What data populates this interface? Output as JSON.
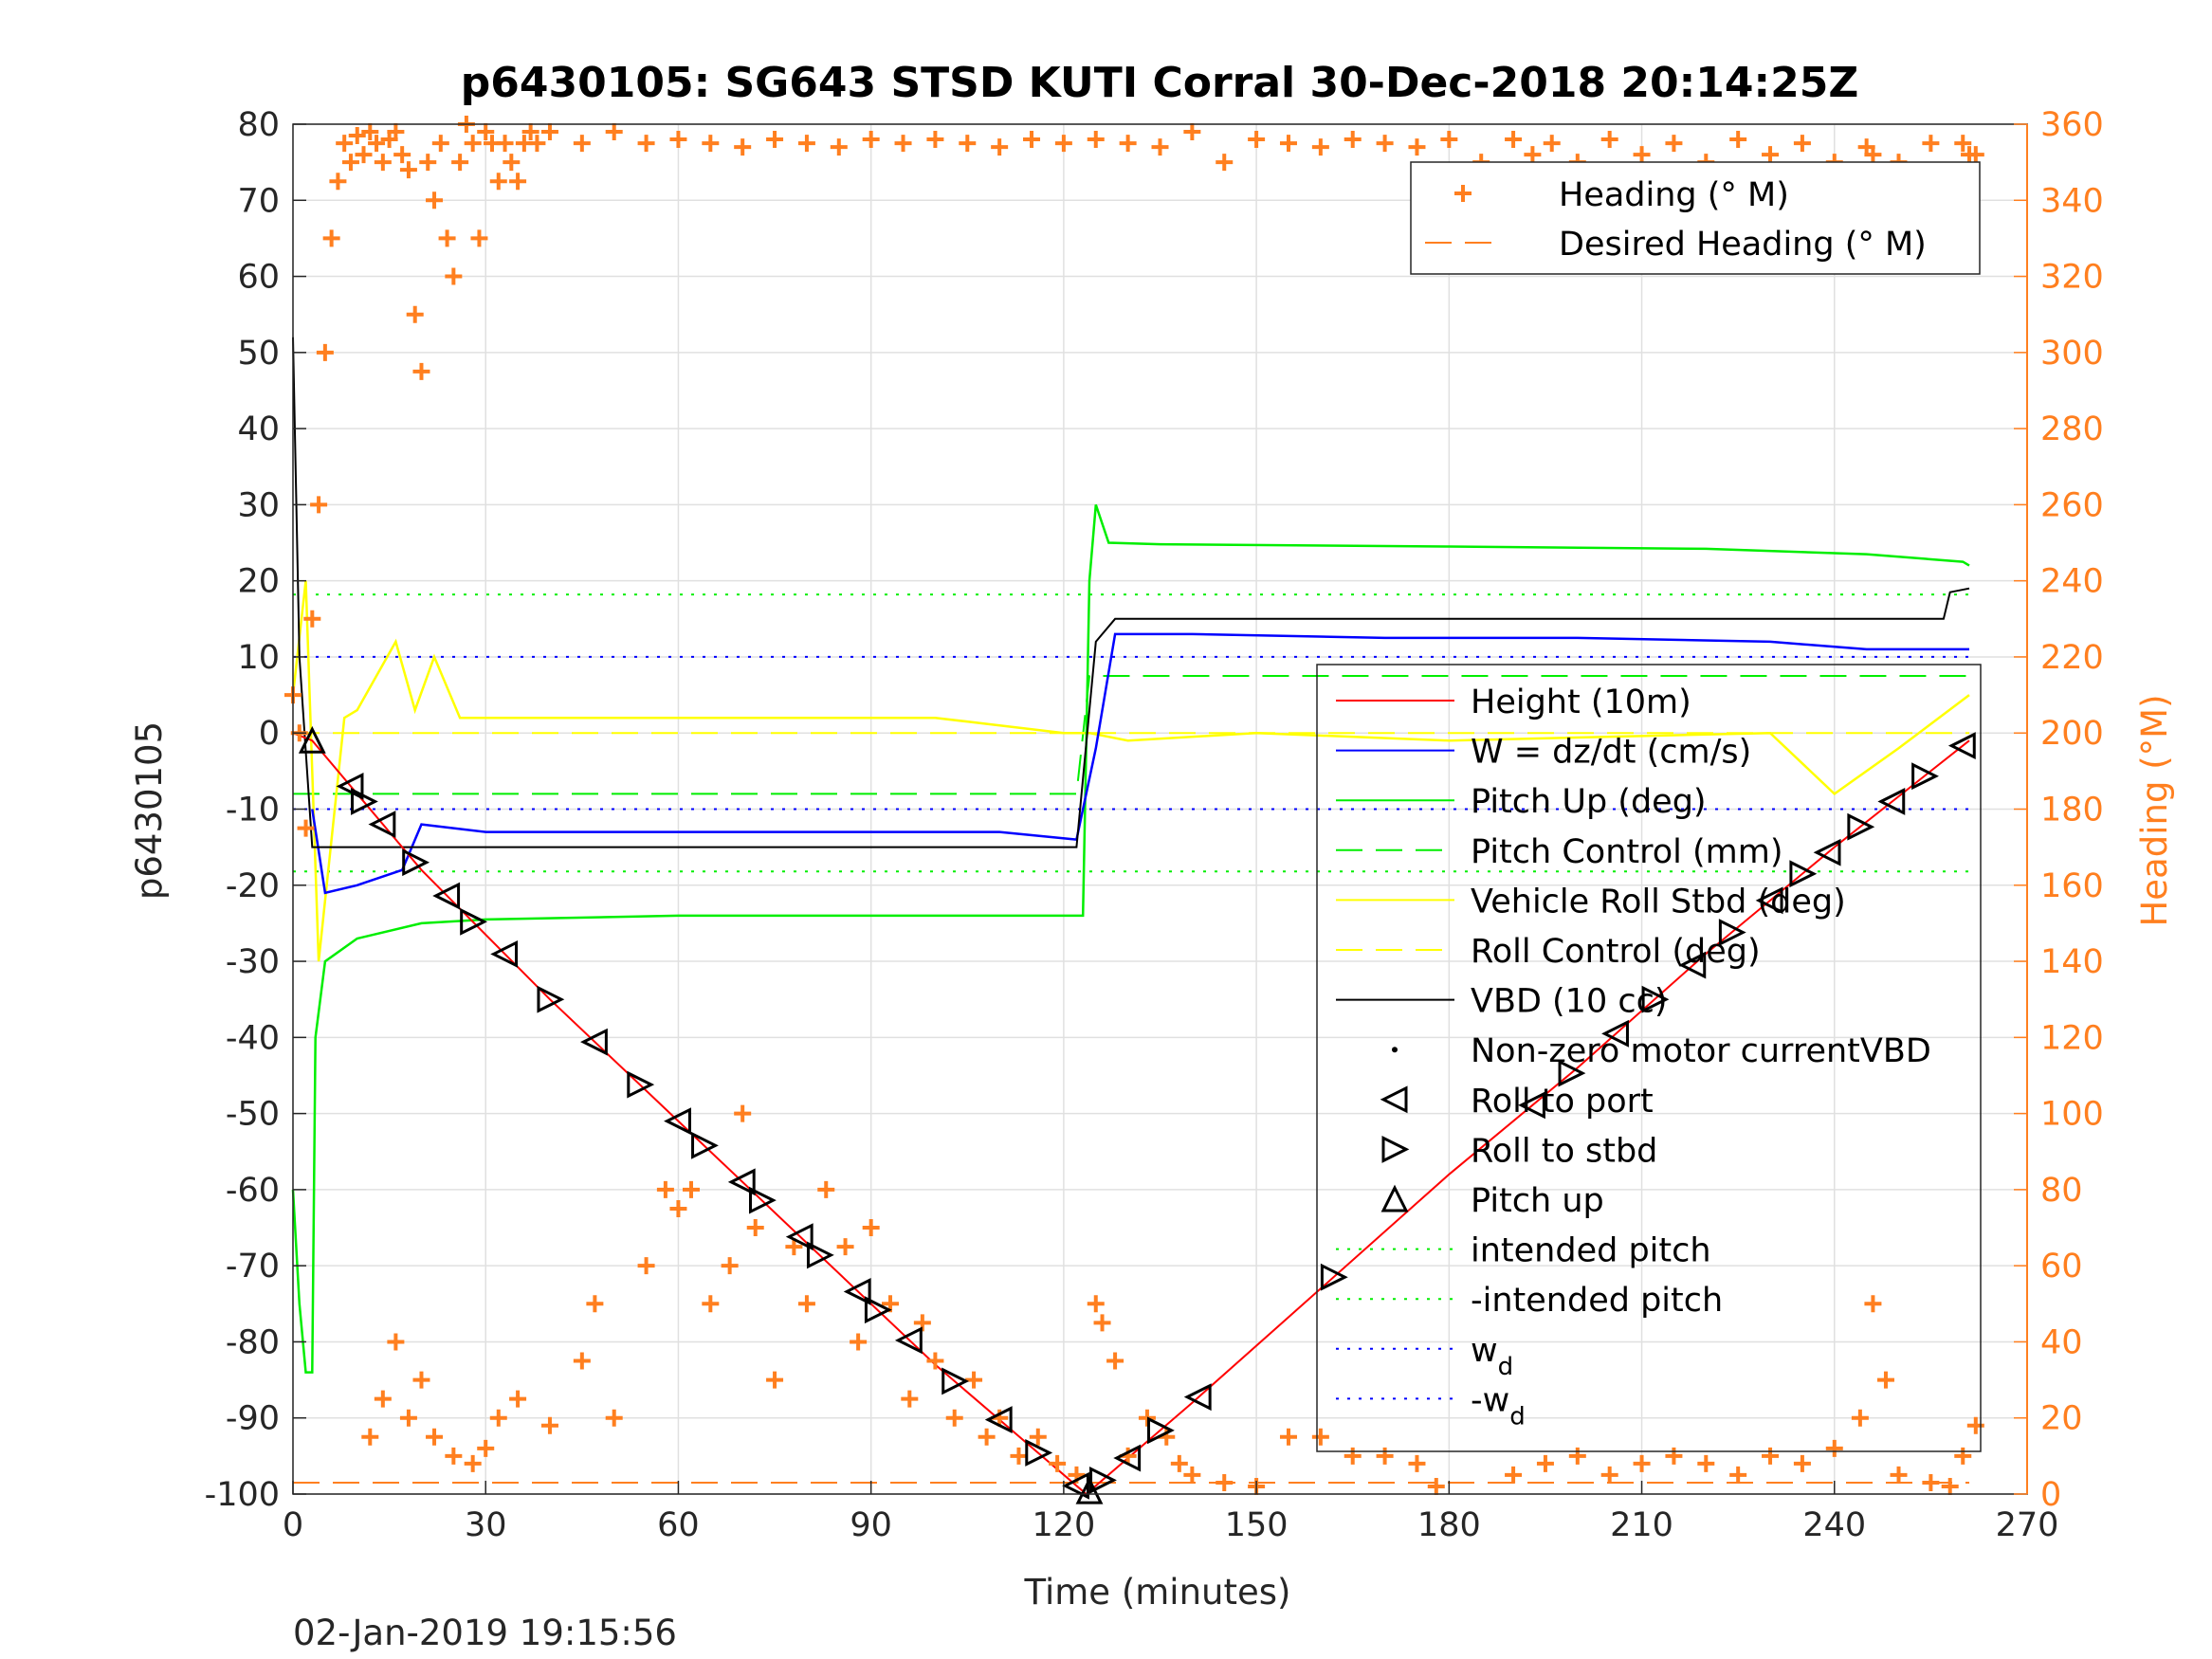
{
  "chart_data": {
    "type": "line",
    "title": "p6430105: SG643 STSD KUTI Corral 30-Dec-2018 20:14:25Z",
    "xlabel": "Time (minutes)",
    "ylabel": "p6430105",
    "y2label": "Heading (°M)",
    "footer_timestamp": "02-Jan-2019 19:15:56",
    "xlim": [
      0,
      270
    ],
    "ylim": [
      -100,
      80
    ],
    "y2lim": [
      0,
      360
    ],
    "xticks": [
      0,
      30,
      60,
      90,
      120,
      150,
      180,
      210,
      240,
      270
    ],
    "yticks": [
      -100,
      -90,
      -80,
      -70,
      -60,
      -50,
      -40,
      -30,
      -20,
      -10,
      0,
      10,
      20,
      30,
      40,
      50,
      60,
      70,
      80
    ],
    "y2ticks": [
      0,
      20,
      40,
      60,
      80,
      100,
      120,
      140,
      160,
      180,
      200,
      220,
      240,
      260,
      280,
      300,
      320,
      340,
      360
    ],
    "grid": true,
    "colors": {
      "height": "#ff0000",
      "w": "#0000ff",
      "pitch": "#00ee00",
      "roll": "#ffff00",
      "vbd": "#000000",
      "heading": "#ff7f1f",
      "axis_right": "#ff7f1f",
      "grid": "#e0e0e0"
    },
    "legend_heading": {
      "placement": "top-right",
      "entries": [
        "Heading (° M)",
        "Desired Heading (° M)"
      ]
    },
    "legend_main": {
      "placement": "right",
      "entries": [
        "Height (10m)",
        "W = dz/dt (cm/s)",
        "Pitch Up (deg)",
        "Pitch Control (mm)",
        "Vehicle Roll Stbd (deg)",
        "Roll Control (deg)",
        "VBD (10 cc)",
        "Non-zero motor currentVBD",
        "Roll to port",
        "Roll to stbd",
        "Pitch up",
        "intended pitch",
        "-intended pitch",
        "w",
        "-w"
      ],
      "subscript_entries": [
        "d",
        "d"
      ]
    },
    "series": [
      {
        "name": "Height (10m)",
        "axis": "left",
        "x": [
          0,
          3,
          20,
          40,
          60,
          80,
          100,
          123.5,
          140,
          160,
          180,
          200,
          220,
          240,
          261
        ],
        "y": [
          0,
          -1,
          -18,
          -35,
          -51,
          -67,
          -83,
          -100,
          -88,
          -73,
          -58,
          -44,
          -29,
          -15,
          -1
        ]
      },
      {
        "name": "W = dz/dt (cm/s)",
        "axis": "left",
        "x": [
          3,
          5,
          10,
          17,
          20,
          30,
          60,
          90,
          110,
          122,
          125,
          128,
          140,
          170,
          200,
          230,
          245,
          250,
          261
        ],
        "y": [
          -10,
          -21,
          -20,
          -18,
          -12,
          -13,
          -13,
          -13,
          -13,
          -14,
          -2,
          13,
          13,
          12.5,
          12.5,
          12,
          11,
          11,
          11
        ]
      },
      {
        "name": "Pitch Up (deg)",
        "axis": "left",
        "x": [
          0,
          1,
          2,
          3,
          3.5,
          5,
          10,
          20,
          30,
          60,
          90,
          120,
          123,
          124,
          125,
          127,
          135,
          180,
          220,
          245,
          260,
          261
        ],
        "y": [
          -60,
          -75,
          -84,
          -84,
          -40,
          -30,
          -27,
          -25,
          -24.5,
          -24,
          -24,
          -24,
          -24,
          20,
          30,
          25,
          24.8,
          24.5,
          24.2,
          23.5,
          22.5,
          22
        ]
      },
      {
        "name": "Pitch Control (mm)",
        "axis": "left",
        "x": [
          0,
          122,
          124,
          261
        ],
        "y": [
          -8,
          -8,
          7.5,
          7.5
        ]
      },
      {
        "name": "Vehicle Roll Stbd (deg)",
        "axis": "left",
        "x": [
          0,
          2,
          4,
          8,
          10,
          16,
          19,
          22,
          26,
          40,
          60,
          80,
          100,
          120,
          124,
          130,
          150,
          180,
          230,
          240,
          250,
          261
        ],
        "y": [
          5,
          20,
          -30,
          2,
          3,
          12,
          3,
          10,
          2,
          2,
          2,
          2,
          2,
          0,
          0,
          -1,
          0,
          -1,
          0,
          -8,
          -2,
          5
        ]
      },
      {
        "name": "Roll Control (deg)",
        "axis": "left",
        "x": [
          0,
          261
        ],
        "y": [
          0,
          0
        ]
      },
      {
        "name": "VBD (10 cc)",
        "axis": "left",
        "x": [
          0,
          1,
          3,
          122,
          125,
          128,
          180,
          230,
          257,
          258,
          261
        ],
        "y": [
          52,
          10,
          -15,
          -15,
          12,
          15,
          15,
          15,
          15,
          18.5,
          19
        ]
      },
      {
        "name": "intended pitch",
        "axis": "left",
        "x": [
          0,
          261
        ],
        "y": [
          18.2,
          18.2
        ]
      },
      {
        "name": "-intended pitch",
        "axis": "left",
        "x": [
          0,
          261
        ],
        "y": [
          -18.2,
          -18.2
        ]
      },
      {
        "name": "w",
        "axis": "left",
        "x": [
          0,
          261
        ],
        "y": [
          10,
          10
        ]
      },
      {
        "name": "-w",
        "axis": "left",
        "x": [
          0,
          261
        ],
        "y": [
          -10,
          -10
        ]
      },
      {
        "name": "Desired Heading (° M)",
        "axis": "right",
        "x": [
          0,
          261
        ],
        "y": [
          3,
          3
        ]
      },
      {
        "name": "Heading (° M)",
        "axis": "right",
        "x": [
          0,
          1,
          2,
          3,
          4,
          5,
          6,
          7,
          8,
          9,
          10,
          11,
          12,
          13,
          14,
          15,
          16,
          17,
          18,
          19,
          20,
          21,
          22,
          23,
          24,
          25,
          26,
          27,
          28,
          29,
          30,
          31,
          32,
          33,
          34,
          35,
          36,
          37,
          38,
          40,
          45,
          50,
          55,
          60,
          65,
          70,
          75,
          80,
          85,
          90,
          95,
          100,
          105,
          110,
          115,
          120,
          125,
          130,
          135,
          140,
          145,
          150,
          155,
          160,
          165,
          170,
          175,
          180,
          185,
          190,
          193,
          196,
          200,
          205,
          210,
          215,
          220,
          225,
          230,
          235,
          240,
          243,
          245,
          246,
          248,
          250,
          255,
          258,
          260,
          261,
          262
        ],
        "y": [
          210,
          200,
          175,
          230,
          260,
          300,
          330,
          345,
          355,
          350,
          357,
          352,
          358,
          355,
          350,
          356,
          358,
          352,
          348,
          310,
          295,
          350,
          340,
          355,
          330,
          320,
          350,
          360,
          355,
          330,
          358,
          355,
          345,
          355,
          350,
          345,
          355,
          358,
          355,
          358,
          355,
          358,
          355,
          356,
          355,
          354,
          356,
          355,
          354,
          356,
          355,
          356,
          355,
          354,
          356,
          355,
          356,
          355,
          354,
          358,
          350,
          356,
          355,
          354,
          356,
          355,
          354,
          356,
          350,
          356,
          352,
          355,
          350,
          356,
          352,
          355,
          350,
          356,
          352,
          355,
          350,
          330,
          354,
          352,
          330,
          350,
          355,
          346,
          355,
          352,
          352
        ]
      },
      {
        "name": "Heading (° M)",
        "axis": "right",
        "segment": "south",
        "x": [
          12,
          14,
          16,
          18,
          20,
          22,
          25,
          28,
          30,
          32,
          35,
          40,
          45,
          47,
          50,
          55,
          58,
          60,
          62,
          65,
          68,
          70,
          72,
          75,
          78,
          80,
          83,
          86,
          88,
          90,
          93,
          96,
          98,
          100,
          103,
          106,
          108,
          110,
          113,
          116,
          119,
          122,
          125,
          126,
          128,
          130,
          133,
          136,
          138,
          140,
          145,
          150,
          155,
          160,
          165,
          170,
          175,
          178,
          190,
          195,
          200,
          205,
          210,
          215,
          220,
          225,
          230,
          235,
          240,
          244,
          246,
          248,
          250,
          255,
          258,
          260,
          262
        ],
        "y": [
          15,
          25,
          40,
          20,
          30,
          15,
          10,
          8,
          12,
          20,
          25,
          18,
          35,
          50,
          20,
          60,
          80,
          75,
          80,
          50,
          60,
          100,
          70,
          30,
          65,
          50,
          80,
          65,
          40,
          70,
          50,
          25,
          45,
          35,
          20,
          30,
          15,
          20,
          10,
          15,
          8,
          5,
          50,
          45,
          35,
          10,
          20,
          15,
          8,
          5,
          3,
          2,
          15,
          15,
          10,
          10,
          8,
          2,
          5,
          8,
          10,
          5,
          8,
          10,
          8,
          5,
          10,
          8,
          12,
          20,
          50,
          30,
          5,
          3,
          2,
          10,
          18
        ]
      }
    ]
  }
}
